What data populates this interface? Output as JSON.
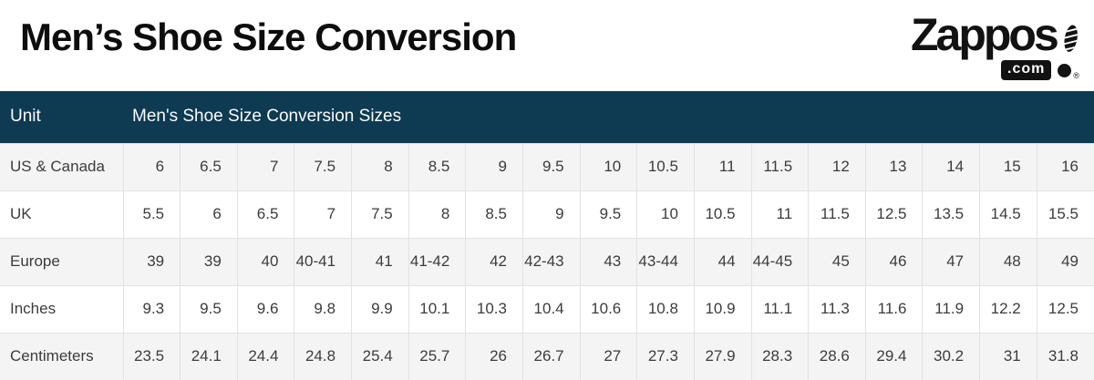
{
  "page": {
    "title": "Men’s Shoe Size Conversion"
  },
  "logo": {
    "brand": "Zappos",
    "domain": ".com",
    "registered": "®"
  },
  "table": {
    "header": {
      "unit_label": "Unit",
      "sizes_label": "Men's Shoe Size Conversion Sizes"
    },
    "rows": [
      {
        "label": "US & Canada",
        "values": [
          "6",
          "6.5",
          "7",
          "7.5",
          "8",
          "8.5",
          "9",
          "9.5",
          "10",
          "10.5",
          "11",
          "11.5",
          "12",
          "13",
          "14",
          "15",
          "16"
        ]
      },
      {
        "label": "UK",
        "values": [
          "5.5",
          "6",
          "6.5",
          "7",
          "7.5",
          "8",
          "8.5",
          "9",
          "9.5",
          "10",
          "10.5",
          "11",
          "11.5",
          "12.5",
          "13.5",
          "14.5",
          "15.5"
        ]
      },
      {
        "label": "Europe",
        "values": [
          "39",
          "39",
          "40",
          "40-41",
          "41",
          "41-42",
          "42",
          "42-43",
          "43",
          "43-44",
          "44",
          "44-45",
          "45",
          "46",
          "47",
          "48",
          "49"
        ]
      },
      {
        "label": "Inches",
        "values": [
          "9.3",
          "9.5",
          "9.6",
          "9.8",
          "9.9",
          "10.1",
          "10.3",
          "10.4",
          "10.6",
          "10.8",
          "10.9",
          "11.1",
          "11.3",
          "11.6",
          "11.9",
          "12.2",
          "12.5"
        ]
      },
      {
        "label": "Centimeters",
        "values": [
          "23.5",
          "24.1",
          "24.4",
          "24.8",
          "25.4",
          "25.7",
          "26",
          "26.7",
          "27",
          "27.3",
          "27.9",
          "28.3",
          "28.6",
          "29.4",
          "30.2",
          "31",
          "31.8"
        ]
      }
    ]
  },
  "colors": {
    "header_bg": "#0e3a52",
    "header_text": "#fbfbfb",
    "row_alt_bg": "#f4f4f4",
    "row_bg": "#ffffff",
    "cell_border": "#e2e2e2",
    "body_text": "#3c3c3c",
    "brand_black": "#121212"
  }
}
